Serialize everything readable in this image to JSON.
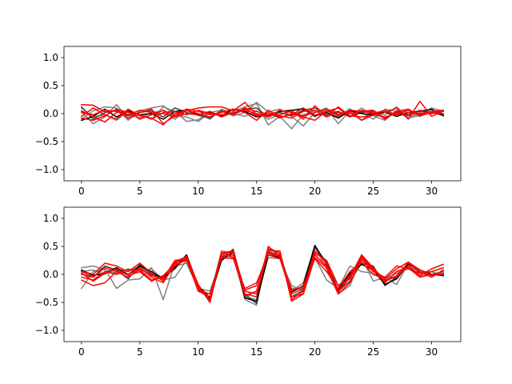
{
  "figure": {
    "background": "#ffffff"
  },
  "chart_data": [
    {
      "type": "line",
      "panel": "top",
      "xlim": [
        -1.5,
        32.5
      ],
      "ylim": [
        -1.2,
        1.2
      ],
      "xticks": [
        0,
        5,
        10,
        15,
        20,
        25,
        30
      ],
      "yticks": [
        -1.0,
        -0.5,
        0.0,
        0.5,
        1.0
      ],
      "xtick_labels": [
        "0",
        "5",
        "10",
        "15",
        "20",
        "25",
        "30"
      ],
      "ytick_labels": [
        "−1.0",
        "−0.5",
        "0.0",
        "0.5",
        "1.0"
      ],
      "grid": false,
      "series": [
        {
          "color": "#808080",
          "values": [
            0.03,
            -0.18,
            -0.06,
            0.16,
            -0.09,
            -0.02,
            -0.1,
            0.12,
            0.04,
            -0.14,
            -0.11,
            0.03,
            -0.06,
            0.04,
            0.12,
            0.18,
            -0.2,
            -0.05,
            -0.27,
            -0.02,
            0.05,
            0.02,
            -0.06,
            0.09,
            -0.12,
            0.05,
            -0.03,
            0.12,
            -0.08,
            0.02,
            0.07,
            -0.02
          ]
        },
        {
          "color": "#808080",
          "values": [
            -0.1,
            0.05,
            0.12,
            0.1,
            -0.12,
            0.05,
            0.1,
            0.14,
            -0.03,
            -0.06,
            -0.14,
            0.02,
            0.06,
            -0.04,
            0.02,
            0.2,
            0.03,
            0.08,
            -0.05,
            -0.22,
            0.02,
            0.1,
            -0.18,
            0.05,
            0.02,
            -0.1,
            0.08,
            0.04,
            -0.08,
            -0.03,
            0.1,
            0.04
          ]
        },
        {
          "color": "#808080",
          "values": [
            0.1,
            -0.06,
            -0.02,
            -0.12,
            0.04,
            -0.08,
            0.02,
            0.05,
            -0.1,
            0.06,
            0.0,
            -0.1,
            0.08,
            0.0,
            -0.05,
            0.05,
            -0.1,
            -0.02,
            0.05,
            0.1,
            -0.06,
            0.08,
            0.02,
            -0.05,
            0.1,
            -0.04,
            -0.12,
            0.06,
            0.02,
            -0.05,
            0.04,
            0.0
          ]
        },
        {
          "color": "#404040",
          "values": [
            0.12,
            -0.1,
            0.02,
            0.06,
            -0.04,
            0.02,
            0.05,
            -0.06,
            0.1,
            0.02,
            -0.03,
            -0.08,
            0.05,
            -0.02,
            0.08,
            0.1,
            -0.06,
            0.02,
            -0.04,
            0.06,
            0.1,
            -0.02,
            0.04,
            -0.06,
            0.02,
            0.05,
            -0.08,
            0.04,
            -0.02,
            0.06,
            0.02,
            -0.03
          ]
        },
        {
          "color": "#000000",
          "values": [
            -0.12,
            -0.05,
            0.08,
            -0.06,
            0.05,
            -0.02,
            0.0,
            -0.1,
            0.04,
            0.06,
            -0.02,
            0.03,
            -0.04,
            0.08,
            0.04,
            -0.06,
            -0.02,
            0.04,
            0.06,
            0.08,
            -0.04,
            0.02,
            -0.08,
            0.05,
            0.0,
            -0.02,
            0.03,
            -0.05,
            0.02,
            0.04,
            0.08,
            -0.04
          ]
        },
        {
          "color": "#ff0000",
          "values": [
            0.16,
            0.15,
            0.03,
            0.05,
            -0.08,
            0.02,
            0.08,
            -0.18,
            -0.04,
            0.05,
            0.1,
            0.12,
            0.12,
            0.05,
            0.2,
            -0.02,
            -0.04,
            -0.02,
            0.05,
            -0.1,
            0.14,
            -0.05,
            0.12,
            -0.04,
            -0.06,
            -0.03,
            0.02,
            0.1,
            -0.1,
            0.22,
            -0.05,
            0.05
          ]
        },
        {
          "color": "#ff0000",
          "values": [
            0.05,
            -0.06,
            -0.15,
            0.02,
            0.04,
            -0.1,
            -0.02,
            0.06,
            -0.04,
            0.08,
            0.04,
            -0.02,
            0.02,
            0.08,
            0.02,
            -0.12,
            0.06,
            -0.06,
            -0.02,
            0.1,
            -0.03,
            0.04,
            0.1,
            -0.06,
            0.06,
            0.02,
            -0.08,
            0.02,
            -0.04,
            0.05,
            0.0,
            0.04
          ]
        },
        {
          "color": "#ff0000",
          "values": [
            -0.05,
            0.1,
            -0.02,
            -0.1,
            0.08,
            -0.04,
            -0.08,
            -0.2,
            0.0,
            0.06,
            0.0,
            -0.06,
            0.04,
            -0.02,
            0.1,
            -0.04,
            0.02,
            -0.08,
            0.0,
            -0.06,
            -0.12,
            0.05,
            -0.02,
            0.03,
            -0.12,
            -0.02,
            -0.06,
            0.0,
            0.06,
            -0.02,
            0.04,
            0.06
          ]
        },
        {
          "color": "#ff0000",
          "values": [
            0.02,
            -0.02,
            0.06,
            0.04,
            -0.02,
            0.06,
            0.02,
            0.0,
            -0.06,
            0.0,
            -0.02,
            0.04,
            -0.06,
            0.02,
            0.06,
            0.0,
            -0.06,
            0.06,
            0.02,
            -0.04,
            0.02,
            0.08,
            -0.04,
            0.06,
            0.04,
            0.0,
            0.06,
            -0.02,
            0.02,
            0.0,
            0.02,
            0.06
          ]
        },
        {
          "color": "#ff0000",
          "values": [
            -0.08,
            -0.12,
            -0.04,
            0.08,
            0.02,
            -0.02,
            -0.1,
            0.02,
            0.04,
            -0.02,
            0.06,
            0.0,
            -0.02,
            0.0,
            0.1,
            0.04,
            -0.02,
            -0.04,
            -0.08,
            0.04,
            0.06,
            -0.06,
            0.02,
            0.0,
            0.04,
            0.06,
            -0.1,
            0.04,
            0.08,
            -0.04,
            0.02,
            0.0
          ]
        }
      ]
    },
    {
      "type": "line",
      "panel": "bottom",
      "xlim": [
        -1.5,
        32.5
      ],
      "ylim": [
        -1.2,
        1.2
      ],
      "xticks": [
        0,
        5,
        10,
        15,
        20,
        25,
        30
      ],
      "yticks": [
        -1.0,
        -0.5,
        0.0,
        0.5,
        1.0
      ],
      "xtick_labels": [
        "0",
        "5",
        "10",
        "15",
        "20",
        "25",
        "30"
      ],
      "ytick_labels": [
        "−1.0",
        "−0.5",
        "0.0",
        "0.5",
        "1.0"
      ],
      "grid": false,
      "series": [
        {
          "color": "#808080",
          "values": [
            -0.25,
            0.05,
            0.1,
            -0.25,
            -0.1,
            -0.08,
            0.12,
            -0.45,
            0.2,
            0.3,
            -0.3,
            -0.4,
            0.42,
            0.38,
            -0.45,
            -0.55,
            0.48,
            0.38,
            -0.3,
            -0.15,
            0.5,
            0.1,
            -0.35,
            -0.2,
            0.3,
            -0.12,
            -0.05,
            -0.18,
            0.2,
            -0.05,
            0.05,
            -0.03
          ]
        },
        {
          "color": "#808080",
          "values": [
            0.12,
            0.15,
            0.08,
            0.02,
            0.1,
            0.05,
            0.1,
            -0.1,
            -0.05,
            0.25,
            -0.2,
            -0.5,
            0.35,
            0.3,
            -0.4,
            -0.45,
            0.3,
            0.28,
            -0.2,
            -0.3,
            0.3,
            -0.1,
            -0.25,
            0.15,
            0.05,
            0.02,
            -0.12,
            0.05,
            0.15,
            0.05,
            -0.05,
            0.08
          ]
        },
        {
          "color": "#808080",
          "values": [
            0.05,
            0.08,
            0.0,
            0.1,
            0.05,
            0.15,
            -0.02,
            -0.05,
            0.15,
            0.2,
            -0.25,
            -0.3,
            0.3,
            0.35,
            -0.4,
            -0.3,
            0.4,
            0.3,
            -0.25,
            -0.25,
            0.35,
            0.15,
            -0.2,
            0.0,
            0.25,
            0.1,
            -0.08,
            0.02,
            0.1,
            -0.02,
            -0.02,
            0.02
          ]
        },
        {
          "color": "#404040",
          "values": [
            0.0,
            -0.05,
            0.15,
            0.08,
            -0.08,
            0.18,
            0.0,
            -0.05,
            0.1,
            0.33,
            -0.25,
            -0.45,
            0.28,
            0.45,
            -0.35,
            -0.52,
            0.4,
            0.35,
            -0.4,
            -0.28,
            0.48,
            0.22,
            -0.3,
            -0.12,
            0.2,
            0.15,
            -0.2,
            -0.05,
            0.22,
            0.02,
            0.0,
            0.05
          ]
        },
        {
          "color": "#000000",
          "values": [
            0.08,
            -0.02,
            0.02,
            0.12,
            0.0,
            0.15,
            0.05,
            -0.08,
            0.12,
            0.35,
            -0.2,
            -0.42,
            0.25,
            0.4,
            -0.42,
            -0.48,
            0.35,
            0.3,
            -0.32,
            -0.2,
            0.52,
            0.18,
            -0.28,
            0.02,
            0.18,
            0.08,
            -0.18,
            -0.08,
            0.18,
            0.08,
            0.0,
            -0.02
          ]
        },
        {
          "color": "#ff0000",
          "values": [
            -0.1,
            -0.2,
            -0.15,
            0.05,
            -0.05,
            0.1,
            -0.02,
            -0.08,
            0.25,
            0.28,
            -0.3,
            -0.4,
            0.38,
            0.42,
            -0.35,
            -0.4,
            0.45,
            0.38,
            -0.45,
            -0.3,
            0.42,
            0.2,
            -0.32,
            -0.05,
            0.35,
            0.12,
            -0.12,
            -0.02,
            0.2,
            0.05,
            -0.05,
            0.08
          ]
        },
        {
          "color": "#ff0000",
          "values": [
            0.05,
            -0.05,
            0.12,
            0.05,
            0.0,
            0.12,
            -0.05,
            -0.15,
            0.2,
            0.3,
            -0.22,
            -0.48,
            0.4,
            0.3,
            -0.3,
            -0.35,
            0.5,
            0.32,
            -0.4,
            -0.35,
            0.38,
            0.25,
            -0.2,
            -0.08,
            0.3,
            0.08,
            -0.1,
            -0.05,
            0.15,
            -0.02,
            0.1,
            0.18
          ]
        },
        {
          "color": "#ff0000",
          "values": [
            -0.05,
            -0.1,
            0.05,
            0.0,
            0.08,
            0.08,
            -0.1,
            -0.05,
            0.22,
            0.32,
            -0.18,
            -0.5,
            0.35,
            0.4,
            -0.28,
            -0.2,
            0.42,
            0.42,
            -0.48,
            -0.35,
            0.3,
            0.12,
            -0.35,
            -0.15,
            0.28,
            0.05,
            -0.05,
            0.15,
            0.1,
            0.02,
            0.05,
            0.12
          ]
        },
        {
          "color": "#ff0000",
          "values": [
            0.02,
            -0.12,
            0.02,
            0.1,
            -0.02,
            0.05,
            -0.12,
            -0.02,
            0.18,
            0.25,
            -0.28,
            -0.35,
            0.3,
            0.28,
            -0.25,
            -0.15,
            0.35,
            0.28,
            -0.35,
            -0.25,
            0.28,
            0.05,
            -0.25,
            0.05,
            0.22,
            0.0,
            -0.08,
            0.1,
            0.22,
            0.08,
            -0.02,
            0.02
          ]
        },
        {
          "color": "#ff0000",
          "values": [
            0.06,
            0.0,
            0.2,
            0.15,
            0.05,
            0.2,
            0.02,
            -0.12,
            0.15,
            0.28,
            -0.25,
            -0.45,
            0.32,
            0.35,
            -0.38,
            -0.3,
            0.38,
            0.32,
            -0.28,
            -0.22,
            0.35,
            0.15,
            -0.3,
            -0.02,
            0.32,
            0.1,
            -0.15,
            0.05,
            0.12,
            -0.05,
            0.0,
            0.0
          ]
        }
      ]
    }
  ]
}
